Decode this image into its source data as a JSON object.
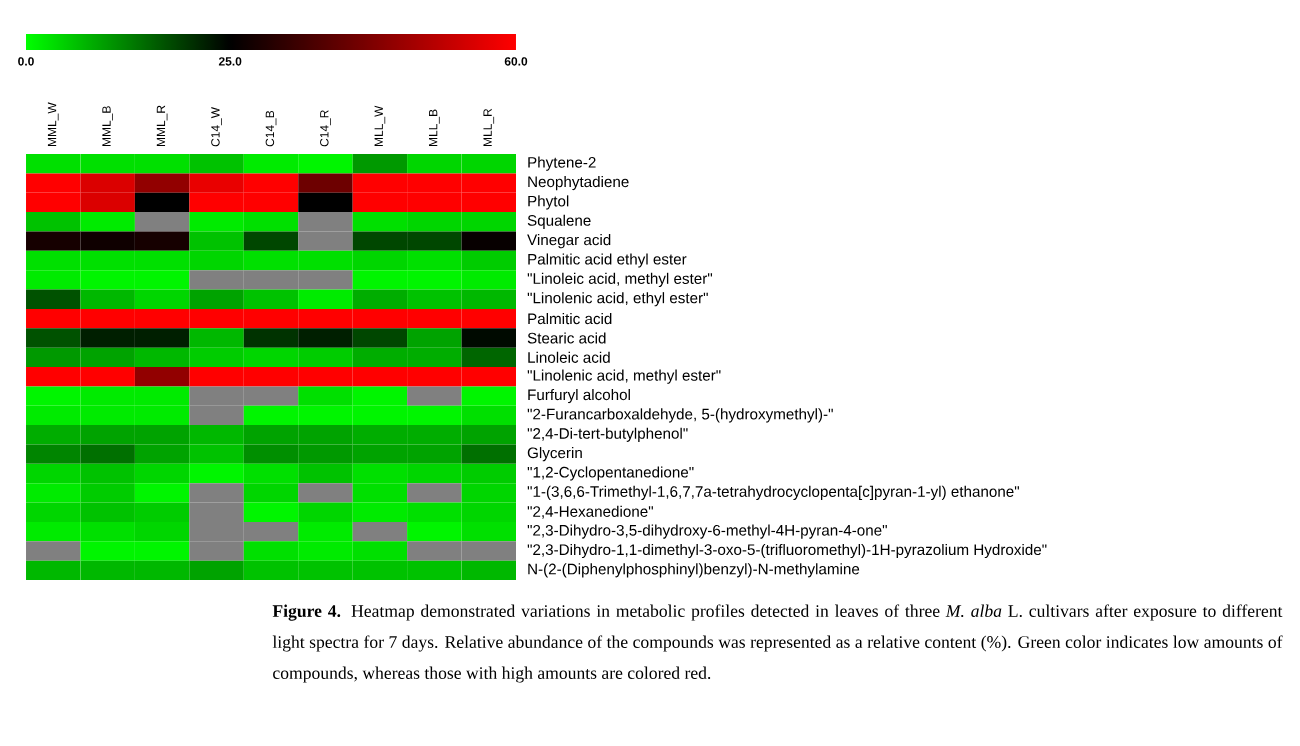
{
  "chart_data": {
    "type": "heatmap",
    "categories": [
      "MML_W",
      "MML_B",
      "MML_R",
      "C14_W",
      "C14_B",
      "C14_R",
      "MLL_W",
      "MLL_B",
      "MLL_R"
    ],
    "y_categories": [
      "Phytene-2",
      "Neophytadiene",
      "Phytol",
      "Squalene",
      "Vinegar acid",
      "Palmitic acid ethyl ester",
      "\"Linoleic acid, methyl ester\"",
      "\"Linolenic acid, ethyl ester\"",
      "Palmitic acid",
      "Stearic acid",
      "Linoleic acid",
      "\"Linolenic acid, methyl ester\"",
      "Furfuryl alcohol",
      "\"2-Furancarboxaldehyde, 5-(hydroxymethyl)-\"",
      "\"2,4-Di-tert-butylphenol\"",
      "Glycerin",
      "\"1,2-Cyclopentanedione\"",
      "\"1-(3,6,6-Trimethyl-1,6,7,7a-tetrahydrocyclopenta[c]pyran-1-yl) ethanone\"",
      "\"2,4-Hexanedione\"",
      "\"2,3-Dihydro-3,5-dihydroxy-6-methyl-4H-pyran-4-one\"",
      "\"2,3-Dihydro-1,1-dimethyl-3-oxo-5-(trifluoromethyl)-1H-pyrazolium Hydroxide\"",
      "N-(2-(Diphenylphosphinyl)benzyl)-N-methylamine"
    ],
    "cells": [
      [
        3,
        3,
        3,
        6,
        2,
        1,
        10,
        4,
        4
      ],
      [
        60,
        55,
        45,
        57,
        60,
        40,
        60,
        60,
        60
      ],
      [
        60,
        55,
        25,
        60,
        60,
        25,
        60,
        60,
        60
      ],
      [
        6,
        2,
        null,
        2,
        3,
        null,
        3,
        4,
        4
      ],
      [
        28,
        27,
        28,
        6,
        18,
        null,
        18,
        18,
        26
      ],
      [
        3,
        3,
        3,
        4,
        3,
        3,
        4,
        3,
        5
      ],
      [
        2,
        1,
        1,
        null,
        null,
        null,
        1,
        1,
        2
      ],
      [
        17,
        7,
        4,
        9,
        6,
        2,
        8,
        6,
        7
      ],
      [
        60,
        60,
        60,
        60,
        60,
        60,
        60,
        60,
        60
      ],
      [
        17,
        22,
        22,
        7,
        20,
        22,
        18,
        9,
        24
      ],
      [
        10,
        9,
        7,
        5,
        4,
        5,
        8,
        8,
        15
      ],
      [
        60,
        60,
        45,
        60,
        60,
        60,
        60,
        60,
        60
      ],
      [
        1,
        2,
        2,
        null,
        null,
        3,
        1,
        null,
        1
      ],
      [
        2,
        2,
        2,
        null,
        1,
        1,
        1,
        1,
        3
      ],
      [
        8,
        9,
        9,
        7,
        9,
        9,
        8,
        8,
        9
      ],
      [
        12,
        14,
        9,
        6,
        11,
        10,
        9,
        9,
        14
      ],
      [
        4,
        6,
        4,
        1,
        3,
        6,
        3,
        4,
        5
      ],
      [
        2,
        5,
        1,
        null,
        4,
        null,
        3,
        null,
        4
      ],
      [
        4,
        6,
        5,
        null,
        1,
        4,
        2,
        3,
        4
      ],
      [
        2,
        3,
        4,
        null,
        null,
        2,
        null,
        1,
        3
      ],
      [
        null,
        1,
        1,
        null,
        3,
        2,
        3,
        null,
        null
      ],
      [
        7,
        7,
        7,
        9,
        6,
        6,
        6,
        6,
        7
      ]
    ],
    "clim": [
      0,
      60
    ],
    "cticks": [
      {
        "value": 0,
        "label": "0.0"
      },
      {
        "value": 25,
        "label": "25.0"
      },
      {
        "value": 60,
        "label": "60.0"
      }
    ],
    "annotations": [
      "**Figure 4.** Heatmap demonstrated variations in metabolic profiles detected in leaves of three *M. alba* L. cultivars after exposure to different light spectra for 7 days. Relative abundance of the compounds was represented as a relative content (%). Green color indicates low amounts of compounds, whereas those with high amounts are colored red."
    ]
  }
}
